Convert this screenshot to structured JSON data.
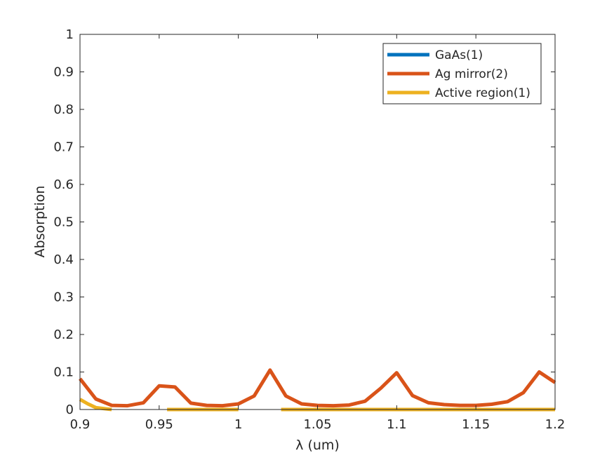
{
  "chart_data": {
    "type": "line",
    "title": "",
    "xlabel": "λ (um)",
    "ylabel": "Absorption",
    "xlim": [
      0.9,
      1.2
    ],
    "ylim": [
      0,
      1
    ],
    "xticks": [
      0.9,
      0.95,
      1,
      1.05,
      1.1,
      1.15,
      1.2
    ],
    "xtick_labels": [
      "0.9",
      "0.95",
      "1",
      "1.05",
      "1.1",
      "1.15",
      "1.2"
    ],
    "yticks": [
      0,
      0.1,
      0.2,
      0.3,
      0.4,
      0.5,
      0.6,
      0.7,
      0.8,
      0.9,
      1
    ],
    "ytick_labels": [
      "0",
      "0.1",
      "0.2",
      "0.3",
      "0.4",
      "0.5",
      "0.6",
      "0.7",
      "0.8",
      "0.9",
      "1"
    ],
    "grid": false,
    "legend_position": "top-right",
    "series": [
      {
        "name": "GaAs(1)",
        "color": "#0072BD",
        "x": [],
        "y": []
      },
      {
        "name": "Ag mirror(2)",
        "color": "#D95319",
        "x": [
          0.9,
          0.91,
          0.92,
          0.93,
          0.94,
          0.95,
          0.96,
          0.97,
          0.98,
          0.99,
          1.0,
          1.01,
          1.02,
          1.03,
          1.04,
          1.05,
          1.06,
          1.07,
          1.08,
          1.09,
          1.1,
          1.11,
          1.12,
          1.13,
          1.14,
          1.15,
          1.16,
          1.17,
          1.18,
          1.19,
          1.2
        ],
        "y": [
          0.082,
          0.028,
          0.011,
          0.01,
          0.018,
          0.063,
          0.06,
          0.017,
          0.011,
          0.01,
          0.015,
          0.036,
          0.105,
          0.036,
          0.015,
          0.011,
          0.01,
          0.012,
          0.022,
          0.057,
          0.098,
          0.037,
          0.018,
          0.013,
          0.011,
          0.011,
          0.014,
          0.021,
          0.045,
          0.1,
          0.072
        ]
      },
      {
        "name": "Active region(1)",
        "color": "#EDB120",
        "segments": [
          {
            "x": [
              0.9,
              0.905,
              0.91,
              0.92
            ],
            "y": [
              0.027,
              0.015,
              0.005,
              0.0
            ]
          },
          {
            "x": [
              0.955,
              1.0
            ],
            "y": [
              0.0,
              0.0
            ]
          },
          {
            "x": [
              1.027,
              1.2
            ],
            "y": [
              0.0,
              0.0
            ]
          }
        ]
      }
    ]
  }
}
